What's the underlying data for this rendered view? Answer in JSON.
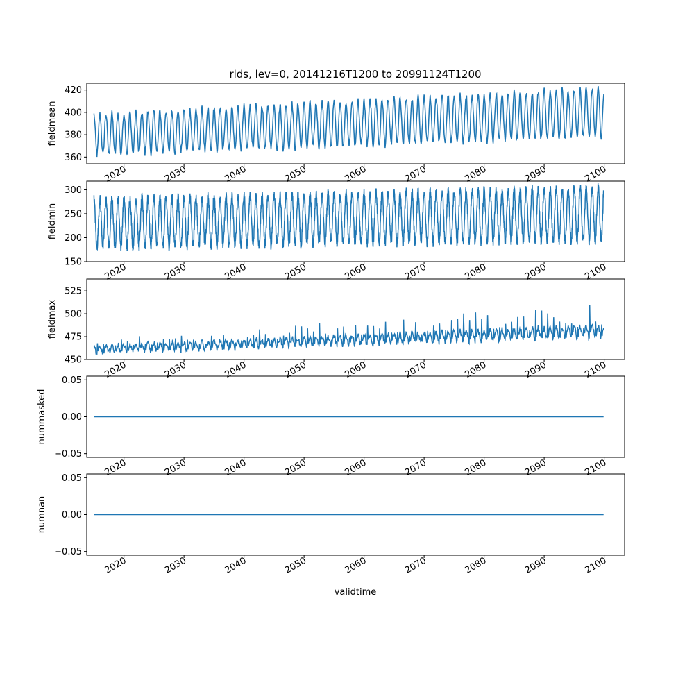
{
  "chart_data": {
    "type": "line",
    "title": "rlds, lev=0, 20141216T1200 to 20991124T1200",
    "xlabel": "validtime",
    "x_range": [
      "2014-12-16",
      "2099-11-24"
    ],
    "xlim": [
      2013.8,
      2103.4
    ],
    "x_ticks": [
      2020,
      2030,
      2040,
      2050,
      2060,
      2070,
      2080,
      2090,
      2100
    ],
    "line_color": "#1f77b4",
    "panels": [
      {
        "name": "fieldmean",
        "ylabel": "fieldmean",
        "ylim": [
          354,
          426
        ],
        "yticks": [
          360,
          380,
          400,
          420
        ],
        "series": {
          "kind": "seasonal",
          "start": 2015.0,
          "end": 2099.9,
          "baseline_start": 380,
          "baseline_end": 400,
          "amplitude_start": 18,
          "amplitude_end": 22,
          "noise": 3,
          "months_per_year": 12
        }
      },
      {
        "name": "fieldmin",
        "ylabel": "fieldmin",
        "ylim": [
          150,
          318
        ],
        "yticks": [
          150,
          200,
          250,
          300
        ],
        "series": {
          "kind": "seasonal",
          "start": 2015.0,
          "end": 2099.9,
          "baseline_start": 230,
          "baseline_end": 250,
          "amplitude_start": 50,
          "amplitude_end": 55,
          "noise": 10,
          "months_per_year": 36
        }
      },
      {
        "name": "fieldmax",
        "ylabel": "fieldmax",
        "ylim": [
          450,
          538
        ],
        "yticks": [
          450,
          475,
          500,
          525
        ],
        "series": {
          "kind": "spiky",
          "start": 2015.0,
          "end": 2099.9,
          "baseline_start": 461,
          "baseline_end": 481,
          "amplitude_start": 4,
          "amplitude_end": 6,
          "noise": 3,
          "spike_start": 12,
          "spike_end": 35,
          "months_per_year": 12
        }
      },
      {
        "name": "nummasked",
        "ylabel": "nummasked",
        "ylim": [
          -0.055,
          0.055
        ],
        "yticks": [
          -0.05,
          0.0,
          0.05
        ],
        "ytick_labels": [
          "−0.05",
          "0.00",
          "0.05"
        ],
        "series": {
          "kind": "constant",
          "start": 2015.0,
          "end": 2099.9,
          "value": 0.0
        }
      },
      {
        "name": "numnan",
        "ylabel": "numnan",
        "ylim": [
          -0.055,
          0.055
        ],
        "yticks": [
          -0.05,
          0.0,
          0.05
        ],
        "ytick_labels": [
          "−0.05",
          "0.00",
          "0.05"
        ],
        "series": {
          "kind": "constant",
          "start": 2015.0,
          "end": 2099.9,
          "value": 0.0
        }
      }
    ]
  }
}
